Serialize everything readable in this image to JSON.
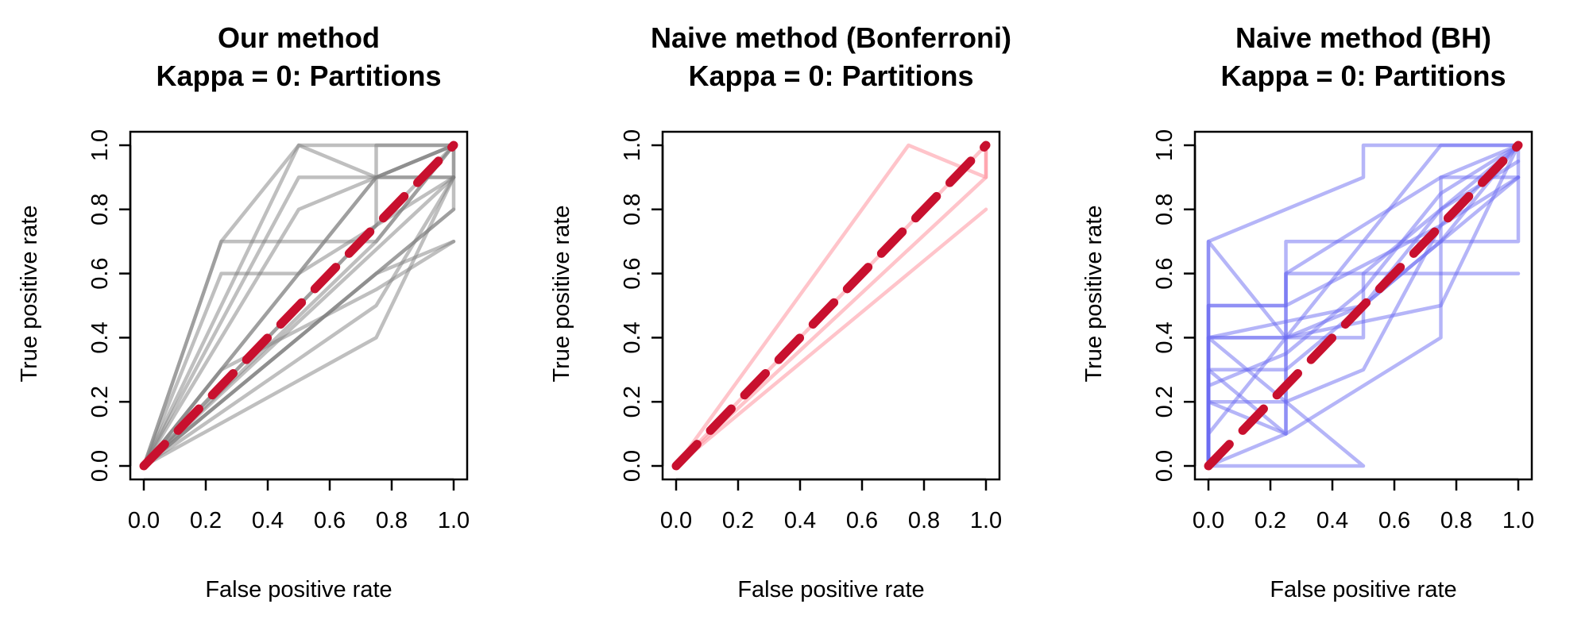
{
  "chart_data": [
    {
      "type": "line",
      "title_lines": [
        "Our method",
        "Kappa = 0: Partitions"
      ],
      "xlabel": "False positive rate",
      "ylabel": "True positive rate",
      "xlim": [
        0,
        1
      ],
      "ylim": [
        0,
        1
      ],
      "xticks": [
        "0.0",
        "0.2",
        "0.4",
        "0.6",
        "0.8",
        "1.0"
      ],
      "yticks": [
        "0.0",
        "0.2",
        "0.4",
        "0.6",
        "0.8",
        "1.0"
      ],
      "grid": false,
      "curve_color": "#808080",
      "diagonal_color": "#c8102e",
      "curves": [
        {
          "x": [
            0,
            0.25,
            0.5,
            1
          ],
          "y": [
            0,
            0.7,
            1,
            1
          ]
        },
        {
          "x": [
            0,
            0.25,
            0.5,
            0.75,
            1
          ],
          "y": [
            0,
            0.7,
            0.7,
            0.7,
            1
          ]
        },
        {
          "x": [
            0,
            0.25,
            0.5,
            1
          ],
          "y": [
            0,
            0.6,
            0.6,
            0.9
          ]
        },
        {
          "x": [
            0,
            0.5,
            0.75,
            1
          ],
          "y": [
            0,
            0.6,
            0.9,
            1
          ]
        },
        {
          "x": [
            0,
            0.5,
            0.75,
            0.75,
            1
          ],
          "y": [
            0,
            0.9,
            0.9,
            1,
            1
          ]
        },
        {
          "x": [
            0,
            0.5,
            0.75,
            1
          ],
          "y": [
            0,
            1,
            0.9,
            0.9
          ]
        },
        {
          "x": [
            0,
            0.5,
            1,
            1
          ],
          "y": [
            0,
            0.8,
            1,
            0.9
          ]
        },
        {
          "x": [
            0,
            0.75,
            1
          ],
          "y": [
            0,
            0.7,
            1
          ]
        },
        {
          "x": [
            0,
            0.75,
            1
          ],
          "y": [
            0,
            0.4,
            0.9
          ]
        },
        {
          "x": [
            0,
            0.75,
            1
          ],
          "y": [
            0,
            0.5,
            0.9
          ]
        },
        {
          "x": [
            0,
            0.75,
            1
          ],
          "y": [
            0,
            0.6,
            0.7
          ]
        },
        {
          "x": [
            0,
            0.5,
            0.75,
            1
          ],
          "y": [
            0,
            0.4,
            0.6,
            0.8
          ]
        },
        {
          "x": [
            0,
            0.5,
            1
          ],
          "y": [
            0,
            0.5,
            1
          ]
        },
        {
          "x": [
            0,
            0.5,
            1,
            1
          ],
          "y": [
            0,
            0.4,
            0.8,
            1
          ]
        },
        {
          "x": [
            0,
            0.75,
            0.75,
            1
          ],
          "y": [
            0,
            0.75,
            0.9,
            1
          ]
        },
        {
          "x": [
            0,
            0.5,
            1
          ],
          "y": [
            0,
            0.45,
            0.9
          ]
        },
        {
          "x": [
            0,
            0.25,
            0.75,
            1
          ],
          "y": [
            0,
            0.3,
            0.55,
            0.7
          ]
        },
        {
          "x": [
            0,
            0.75,
            1
          ],
          "y": [
            0,
            0.9,
            0.9
          ]
        }
      ]
    },
    {
      "type": "line",
      "title_lines": [
        "Naive method (Bonferroni)",
        "Kappa = 0: Partitions"
      ],
      "xlabel": "False positive rate",
      "ylabel": "True positive rate",
      "xlim": [
        0,
        1
      ],
      "ylim": [
        0,
        1
      ],
      "xticks": [
        "0.0",
        "0.2",
        "0.4",
        "0.6",
        "0.8",
        "1.0"
      ],
      "yticks": [
        "0.0",
        "0.2",
        "0.4",
        "0.6",
        "0.8",
        "1.0"
      ],
      "grid": false,
      "curve_color": "#ff8a96",
      "diagonal_color": "#c8102e",
      "curves": [
        {
          "x": [
            0,
            0.75,
            1,
            1
          ],
          "y": [
            0,
            1,
            0.9,
            1
          ]
        },
        {
          "x": [
            0,
            1,
            1
          ],
          "y": [
            0,
            0.9,
            1
          ]
        },
        {
          "x": [
            0,
            1
          ],
          "y": [
            0,
            0.8
          ]
        },
        {
          "x": [
            0,
            1
          ],
          "y": [
            0,
            1
          ]
        }
      ]
    },
    {
      "type": "line",
      "title_lines": [
        "Naive method (BH)",
        "Kappa = 0: Partitions"
      ],
      "xlabel": "False positive rate",
      "ylabel": "True positive rate",
      "xlim": [
        0,
        1
      ],
      "ylim": [
        0,
        1
      ],
      "xticks": [
        "0.0",
        "0.2",
        "0.4",
        "0.6",
        "0.8",
        "1.0"
      ],
      "yticks": [
        "0.0",
        "0.2",
        "0.4",
        "0.6",
        "0.8",
        "1.0"
      ],
      "grid": false,
      "curve_color": "#6b6bf2",
      "diagonal_color": "#c8102e",
      "curves": [
        {
          "x": [
            0,
            0,
            0.5,
            0.5,
            1
          ],
          "y": [
            0,
            0.7,
            0.9,
            1,
            1
          ]
        },
        {
          "x": [
            0,
            0,
            0.25,
            0.75,
            1
          ],
          "y": [
            0,
            0.7,
            0.4,
            1,
            1
          ]
        },
        {
          "x": [
            0,
            0,
            0.25,
            0.25,
            1,
            1
          ],
          "y": [
            0,
            0.5,
            0.5,
            0.7,
            0.7,
            1
          ]
        },
        {
          "x": [
            0,
            0,
            0.5,
            0.5,
            1
          ],
          "y": [
            0,
            0.4,
            0.4,
            0.6,
            1
          ]
        },
        {
          "x": [
            0,
            0,
            0.25,
            0.25,
            0.75,
            1
          ],
          "y": [
            0,
            0.3,
            0.3,
            0.6,
            0.9,
            0.9
          ]
        },
        {
          "x": [
            0,
            0,
            0.25,
            0.75,
            0.75,
            1
          ],
          "y": [
            0,
            0.2,
            0.1,
            0.4,
            0.9,
            1
          ]
        },
        {
          "x": [
            0,
            0,
            0.25,
            0.5,
            1
          ],
          "y": [
            0,
            0.1,
            0.4,
            0.5,
            0.9
          ]
        },
        {
          "x": [
            0,
            0.5,
            0,
            0.25,
            0.75,
            1
          ],
          "y": [
            0,
            0,
            0.4,
            0.4,
            0.5,
            1
          ]
        },
        {
          "x": [
            0,
            0,
            0.25,
            0.25,
            0.75,
            1
          ],
          "y": [
            0,
            0.3,
            0.1,
            0.6,
            0.6,
            0.6
          ]
        },
        {
          "x": [
            0,
            0,
            0.25,
            0.5,
            0.75,
            1
          ],
          "y": [
            0,
            0.2,
            0.2,
            0.3,
            0.75,
            0.9
          ]
        },
        {
          "x": [
            0,
            0.25,
            0.25,
            0.75,
            1
          ],
          "y": [
            0,
            0.1,
            0.3,
            0.7,
            1
          ]
        },
        {
          "x": [
            0,
            0,
            0.25,
            0.75,
            1
          ],
          "y": [
            0,
            0.5,
            0.5,
            0.75,
            1
          ]
        },
        {
          "x": [
            0,
            0,
            0.25,
            0.5,
            0.75,
            1
          ],
          "y": [
            0,
            0.25,
            0.35,
            0.55,
            0.85,
            1
          ]
        },
        {
          "x": [
            0,
            0,
            0.5,
            0.75,
            1
          ],
          "y": [
            0,
            0.4,
            0.5,
            0.8,
            0.95
          ]
        }
      ]
    }
  ]
}
